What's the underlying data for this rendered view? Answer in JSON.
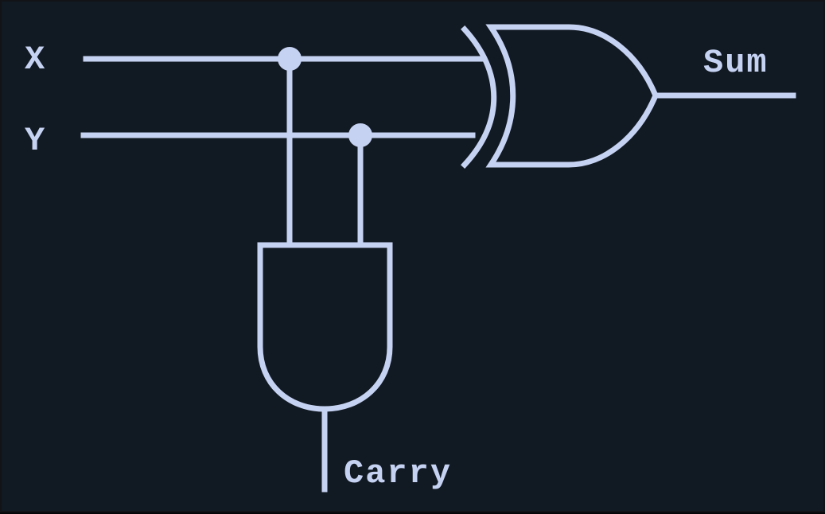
{
  "diagram": {
    "inputs": {
      "x": "X",
      "y": "Y"
    },
    "outputs": {
      "sum": "Sum",
      "carry": "Carry"
    },
    "colors": {
      "background": "#111a23",
      "line": "#c6d2f2"
    }
  }
}
